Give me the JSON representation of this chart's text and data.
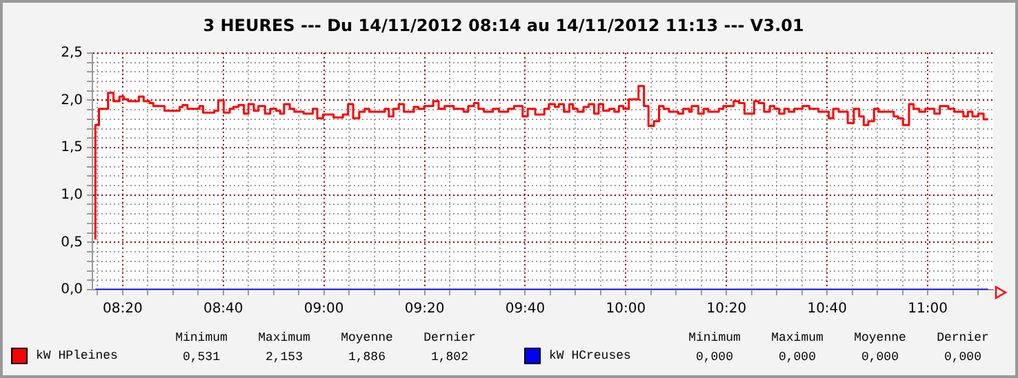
{
  "chart_data": {
    "type": "step",
    "title": "3 HEURES --- Du 14/11/2012 08:14 au 14/11/2012 11:13 --- V3.01",
    "series": [
      {
        "name": "kW HPleines",
        "color": "#ff0000",
        "x": [
          8.243,
          8.255,
          8.285,
          8.303,
          8.323,
          8.337,
          8.352,
          8.387,
          8.403,
          8.423,
          8.435,
          8.472,
          8.522,
          8.532,
          8.548,
          8.588,
          8.6,
          8.637,
          8.65,
          8.668,
          8.688,
          8.7,
          8.717,
          8.735,
          8.75,
          8.768,
          8.783,
          8.805,
          8.822,
          8.842,
          8.855,
          8.868,
          8.887,
          8.902,
          8.933,
          8.963,
          8.978,
          8.997,
          9.032,
          9.063,
          9.08,
          9.097,
          9.117,
          9.135,
          9.15,
          9.202,
          9.215,
          9.23,
          9.248,
          9.265,
          9.298,
          9.313,
          9.332,
          9.362,
          9.38,
          9.4,
          9.43,
          9.463,
          9.478,
          9.497,
          9.512,
          9.53,
          9.56,
          9.58,
          9.61,
          9.63,
          9.658,
          9.675,
          9.7,
          9.73,
          9.745,
          9.765,
          9.778,
          9.795,
          9.813,
          9.825,
          9.84,
          9.86,
          9.877,
          9.895,
          9.91,
          9.925,
          9.945,
          9.962,
          9.977,
          9.992,
          10.01,
          10.042,
          10.06,
          10.075,
          10.093,
          10.11,
          10.125,
          10.143,
          10.173,
          10.19,
          10.21,
          10.218,
          10.24,
          10.258,
          10.273,
          10.308,
          10.323,
          10.357,
          10.375,
          10.393,
          10.425,
          10.44,
          10.458,
          10.477,
          10.492,
          10.508,
          10.525,
          10.54,
          10.558,
          10.585,
          10.608,
          10.638,
          10.672,
          10.687,
          10.705,
          10.735,
          10.755,
          10.773,
          10.788,
          10.803,
          10.822,
          10.837,
          10.887,
          10.902,
          10.918,
          10.938,
          10.953,
          10.972,
          10.992,
          11.022,
          11.04,
          11.068,
          11.088,
          11.118,
          11.133,
          11.148,
          11.167,
          11.185,
          11.2
        ],
        "values": [
          0.53,
          1.74,
          1.91,
          2.08,
          1.99,
          2.04,
          2.01,
          1.99,
          2.04,
          1.99,
          1.97,
          1.94,
          1.89,
          1.93,
          1.95,
          1.91,
          1.94,
          1.87,
          1.89,
          2.0,
          1.87,
          1.91,
          1.93,
          1.95,
          1.86,
          1.96,
          1.89,
          1.94,
          1.86,
          1.91,
          1.89,
          1.86,
          1.96,
          1.91,
          1.88,
          1.86,
          1.91,
          1.81,
          1.85,
          1.82,
          1.85,
          1.96,
          1.81,
          1.88,
          1.91,
          1.88,
          1.91,
          1.83,
          1.91,
          1.96,
          1.88,
          1.93,
          1.91,
          1.94,
          1.99,
          1.91,
          1.94,
          1.91,
          1.88,
          1.94,
          1.97,
          1.91,
          1.88,
          1.91,
          1.88,
          1.91,
          1.94,
          1.83,
          1.91,
          1.85,
          1.91,
          1.96,
          1.93,
          1.96,
          1.88,
          1.96,
          1.91,
          1.88,
          1.93,
          1.96,
          1.86,
          1.96,
          1.89,
          1.91,
          1.88,
          1.94,
          1.91,
          2.01,
          2.15,
          1.94,
          1.73,
          1.78,
          1.94,
          1.91,
          1.88,
          1.86,
          1.91,
          1.88,
          1.94,
          1.86,
          1.91,
          1.88,
          1.91,
          1.94,
          1.99,
          1.97,
          1.86,
          1.99,
          1.97,
          1.88,
          1.94,
          1.91,
          1.86,
          1.91,
          1.88,
          1.91,
          1.94,
          1.91,
          1.88,
          1.81,
          1.91,
          1.88,
          1.76,
          1.91,
          1.83,
          1.74,
          1.78,
          1.91,
          1.88,
          1.83,
          1.81,
          1.74,
          1.96,
          1.91,
          1.88,
          1.91,
          1.86,
          1.94,
          1.91,
          1.88,
          1.83,
          1.88,
          1.83,
          1.86,
          1.8
        ]
      },
      {
        "name": "kW HCreuses",
        "color": "#0000ff",
        "x": [
          8.243,
          11.2
        ],
        "values": [
          0,
          0
        ]
      }
    ],
    "xlim": [
      8.2333,
      11.2167
    ],
    "xticks": [
      {
        "value": 8.25,
        "label": null
      },
      {
        "value": 8.3333,
        "label": "08:20"
      },
      {
        "value": 8.4167,
        "label": null
      },
      {
        "value": 8.5,
        "label": null
      },
      {
        "value": 8.5833,
        "label": null
      },
      {
        "value": 8.6667,
        "label": "08:40"
      },
      {
        "value": 8.75,
        "label": null
      },
      {
        "value": 8.8333,
        "label": null
      },
      {
        "value": 8.9167,
        "label": null
      },
      {
        "value": 9,
        "label": "09:00"
      },
      {
        "value": 9.0833,
        "label": null
      },
      {
        "value": 9.1667,
        "label": null
      },
      {
        "value": 9.25,
        "label": null
      },
      {
        "value": 9.3333,
        "label": "09:20"
      },
      {
        "value": 9.4167,
        "label": null
      },
      {
        "value": 9.5,
        "label": null
      },
      {
        "value": 9.5833,
        "label": null
      },
      {
        "value": 9.6667,
        "label": "09:40"
      },
      {
        "value": 9.75,
        "label": null
      },
      {
        "value": 9.8333,
        "label": null
      },
      {
        "value": 9.9167,
        "label": null
      },
      {
        "value": 10,
        "label": "10:00"
      },
      {
        "value": 10.0833,
        "label": null
      },
      {
        "value": 10.1667,
        "label": null
      },
      {
        "value": 10.25,
        "label": null
      },
      {
        "value": 10.3333,
        "label": "10:20"
      },
      {
        "value": 10.4167,
        "label": null
      },
      {
        "value": 10.5,
        "label": null
      },
      {
        "value": 10.5833,
        "label": null
      },
      {
        "value": 10.6667,
        "label": "10:40"
      },
      {
        "value": 10.75,
        "label": null
      },
      {
        "value": 10.8333,
        "label": null
      },
      {
        "value": 10.9167,
        "label": null
      },
      {
        "value": 11,
        "label": "11:00"
      },
      {
        "value": 11.0833,
        "label": null
      },
      {
        "value": 11.1667,
        "label": null
      }
    ],
    "ylim": [
      0,
      2.5
    ],
    "yticks": [
      {
        "value": 0,
        "label": "0,0"
      },
      {
        "value": 0.1,
        "label": null
      },
      {
        "value": 0.2,
        "label": null
      },
      {
        "value": 0.3,
        "label": null
      },
      {
        "value": 0.4,
        "label": null
      },
      {
        "value": 0.5,
        "label": "0,5"
      },
      {
        "value": 0.6,
        "label": null
      },
      {
        "value": 0.7,
        "label": null
      },
      {
        "value": 0.8,
        "label": null
      },
      {
        "value": 0.9,
        "label": null
      },
      {
        "value": 1.0,
        "label": "1,0"
      },
      {
        "value": 1.1,
        "label": null
      },
      {
        "value": 1.2,
        "label": null
      },
      {
        "value": 1.3,
        "label": null
      },
      {
        "value": 1.4,
        "label": null
      },
      {
        "value": 1.5,
        "label": "1,5"
      },
      {
        "value": 1.6,
        "label": null
      },
      {
        "value": 1.7,
        "label": null
      },
      {
        "value": 1.8,
        "label": null
      },
      {
        "value": 1.9,
        "label": null
      },
      {
        "value": 2.0,
        "label": "2,0"
      },
      {
        "value": 2.1,
        "label": null
      },
      {
        "value": 2.2,
        "label": null
      },
      {
        "value": 2.3,
        "label": null
      },
      {
        "value": 2.4,
        "label": null
      },
      {
        "value": 2.5,
        "label": "2,5"
      }
    ],
    "grid": true,
    "legend": "bottom",
    "line_style": "solid",
    "marker": "none",
    "annotations": [
      "Minimum",
      "Maximum",
      "Moyenne",
      "Dernier",
      "0,531",
      "2,153",
      "1,886",
      "1,802",
      "Minimum",
      "Maximum",
      "Moyenne",
      "Dernier",
      "0,000",
      "0,000",
      "0,000",
      "0,000"
    ]
  }
}
